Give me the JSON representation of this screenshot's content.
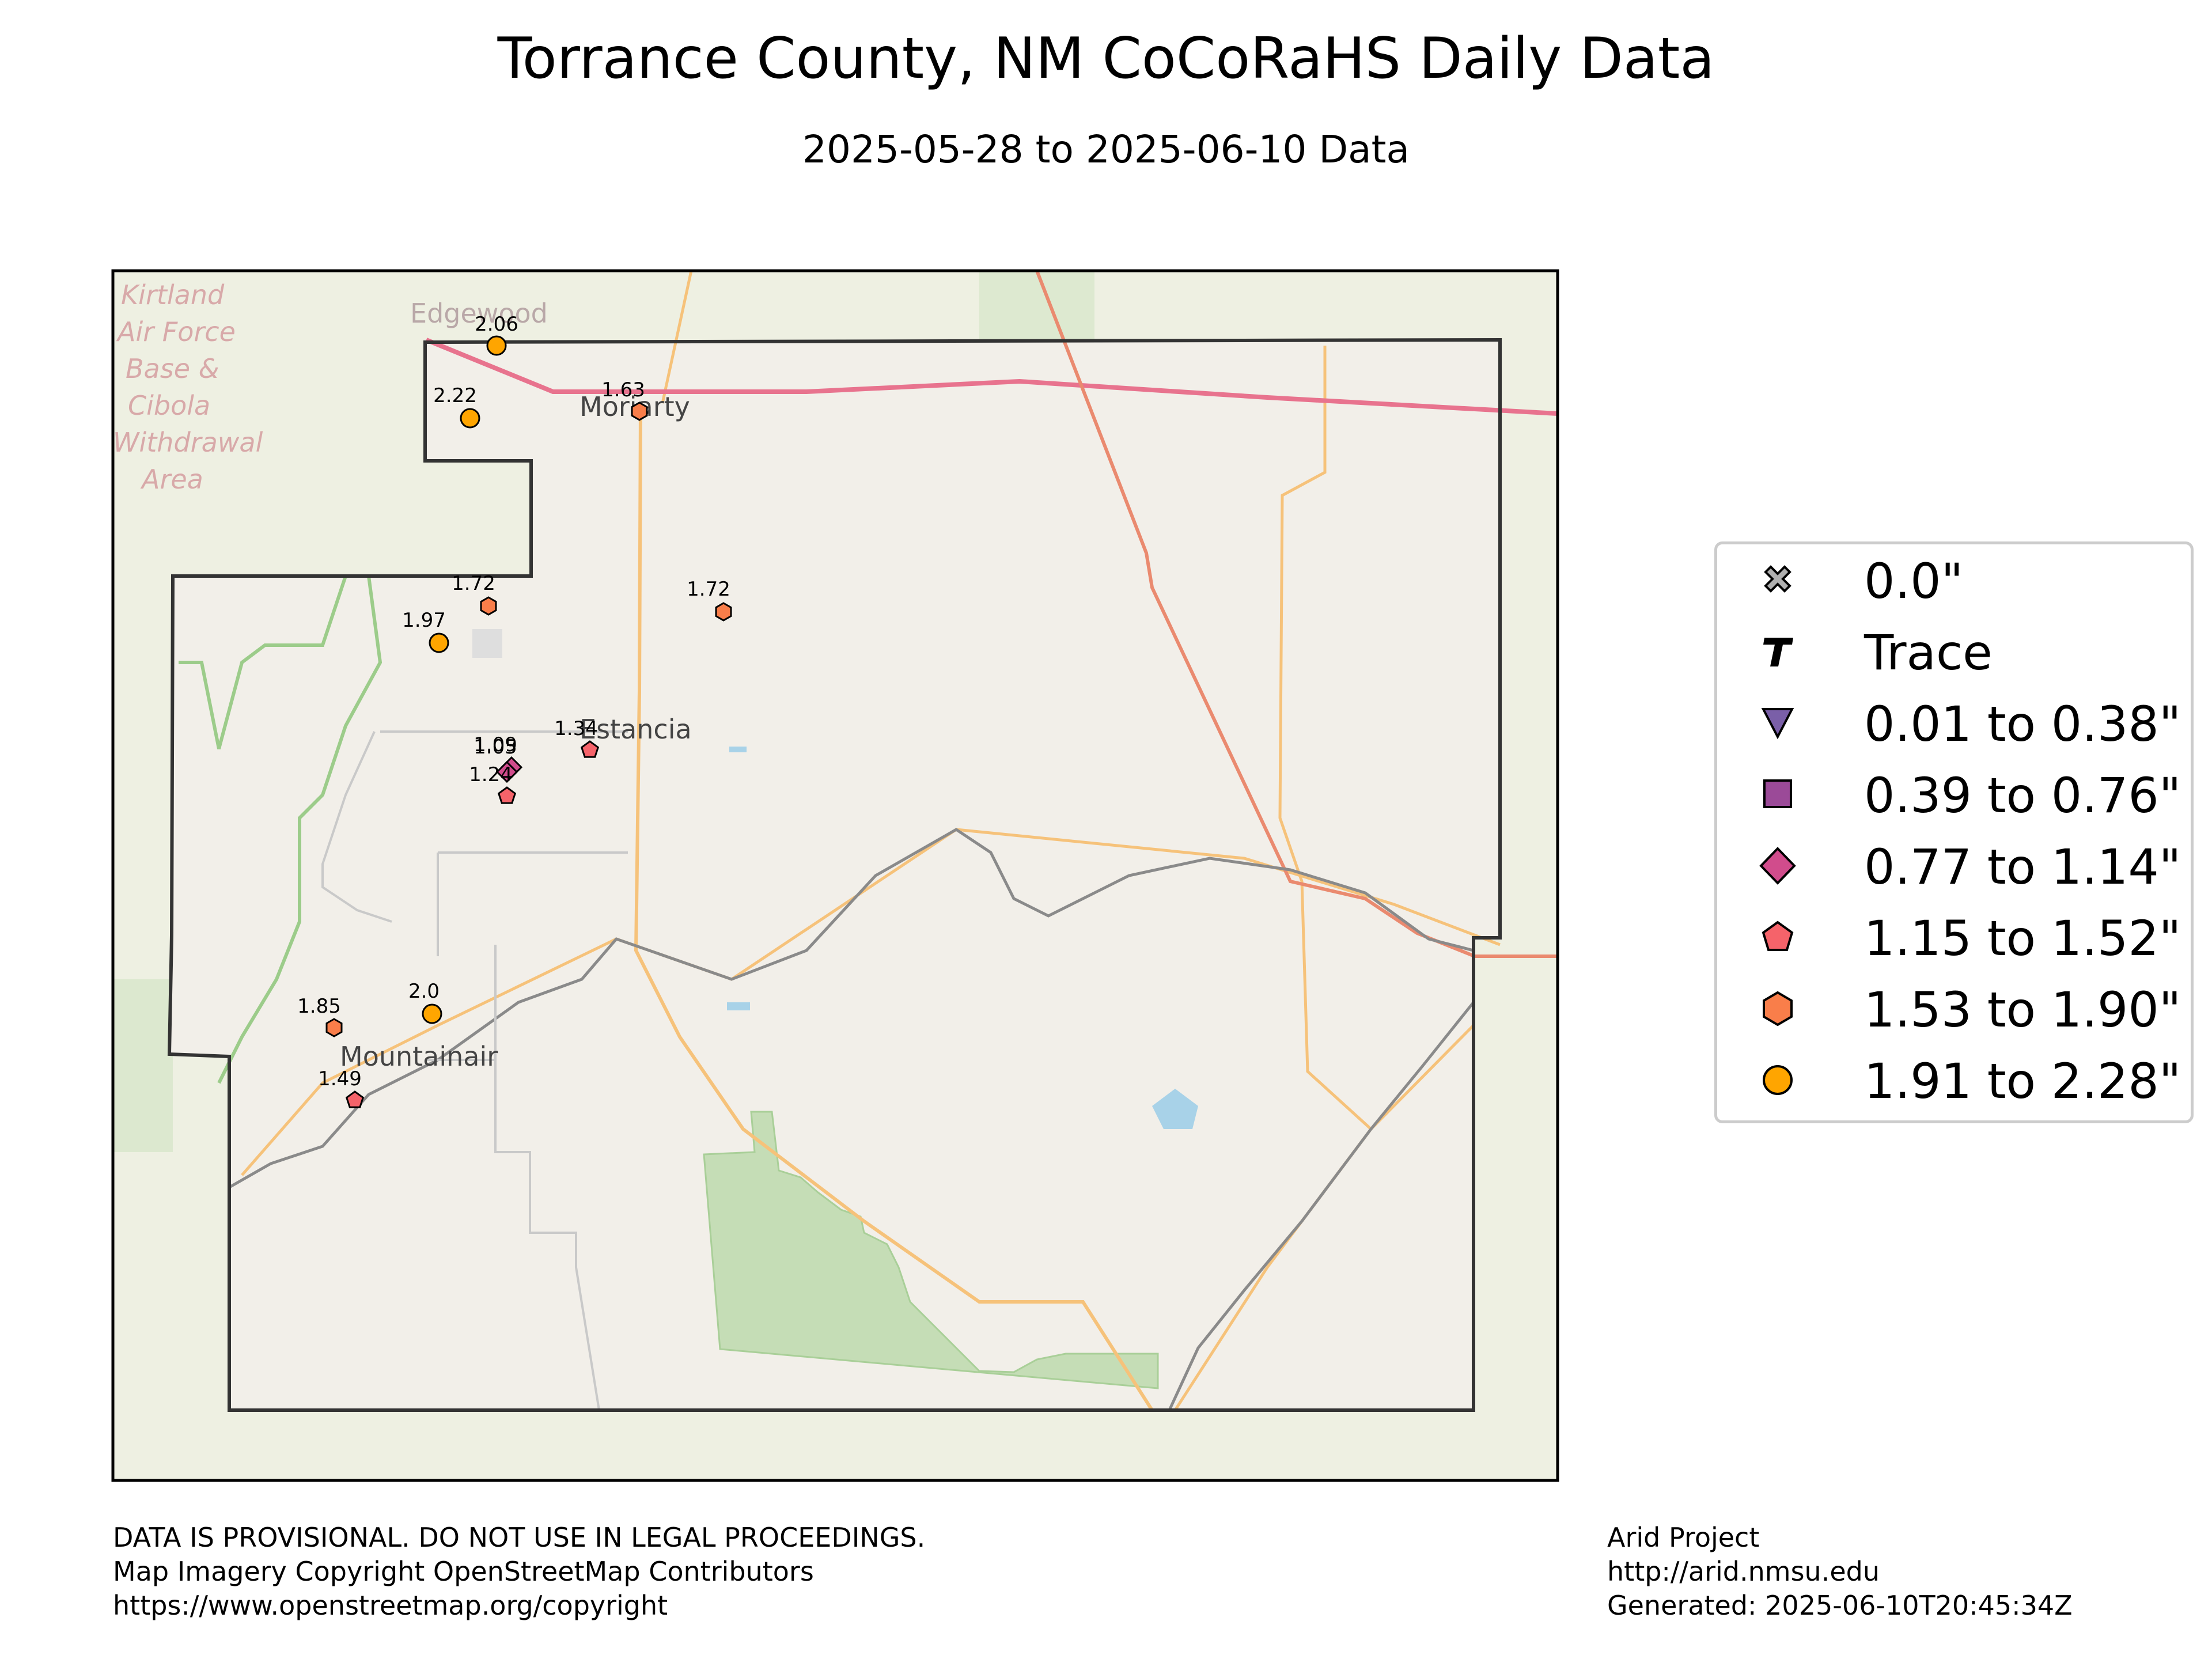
{
  "title": "Torrance County, NM CoCoRaHS Daily Data",
  "subtitle": "2025-05-28 to 2025-06-10 Data",
  "basemap_labels": {
    "edgewood": "Edgewood",
    "moriarty": "Moriarty",
    "estancia": "Estancia",
    "mountainair": "Mountainair",
    "kirtland": [
      "Kirtland",
      "Air Force",
      "Base &",
      "Cibola",
      "Withdrawal",
      "Area"
    ]
  },
  "stations": [
    {
      "label": "2.06",
      "value": 2.06,
      "symbol": "circle",
      "color": "#FFA500"
    },
    {
      "label": "2.22",
      "value": 2.22,
      "symbol": "circle",
      "color": "#FFA500"
    },
    {
      "label": "1.63",
      "value": 1.63,
      "symbol": "hexagon",
      "color": "#F97E4A"
    },
    {
      "label": "1.72",
      "value": 1.72,
      "symbol": "hexagon",
      "color": "#F97E4A"
    },
    {
      "label": "1.72",
      "value": 1.72,
      "symbol": "hexagon",
      "color": "#F97E4A"
    },
    {
      "label": "1.97",
      "value": 1.97,
      "symbol": "circle",
      "color": "#FFA500"
    },
    {
      "label": "1.09",
      "value": 1.09,
      "symbol": "diamond",
      "color": "#D14C8C"
    },
    {
      "label": "1.05",
      "value": 1.05,
      "symbol": "diamond",
      "color": "#D14C8C"
    },
    {
      "label": "1.24",
      "value": 1.24,
      "symbol": "pentagon",
      "color": "#F5636A"
    },
    {
      "label": "1.34",
      "value": 1.34,
      "symbol": "pentagon",
      "color": "#F5636A"
    },
    {
      "label": "1.85",
      "value": 1.85,
      "symbol": "hexagon",
      "color": "#F97E4A"
    },
    {
      "label": "2.0",
      "value": 2.0,
      "symbol": "circle",
      "color": "#FFA500"
    },
    {
      "label": "1.49",
      "value": 1.49,
      "symbol": "pentagon",
      "color": "#F5636A"
    }
  ],
  "legend": [
    {
      "label": "0.0\"",
      "symbol": "x",
      "color": "#B0B0B0"
    },
    {
      "label": "Trace",
      "symbol": "T",
      "color": "#000000"
    },
    {
      "label": "0.01 to 0.38\"",
      "symbol": "triangle-down",
      "color": "#7A5FA8"
    },
    {
      "label": "0.39 to 0.76\"",
      "symbol": "square",
      "color": "#9B4A98"
    },
    {
      "label": "0.77 to 1.14\"",
      "symbol": "diamond",
      "color": "#D14C8C"
    },
    {
      "label": "1.15 to 1.52\"",
      "symbol": "pentagon",
      "color": "#F5636A"
    },
    {
      "label": "1.53 to 1.90\"",
      "symbol": "hexagon",
      "color": "#F97E4A"
    },
    {
      "label": "1.91 to 2.28\"",
      "symbol": "circle",
      "color": "#FFA500"
    }
  ],
  "footer_left": [
    "DATA IS PROVISIONAL. DO NOT USE IN LEGAL PROCEEDINGS.",
    "Map Imagery Copyright OpenStreetMap Contributors",
    "https://www.openstreetmap.org/copyright"
  ],
  "footer_right": [
    "Arid Project",
    "http://arid.nmsu.edu",
    "Generated: 2025-06-10T20:45:34Z"
  ]
}
